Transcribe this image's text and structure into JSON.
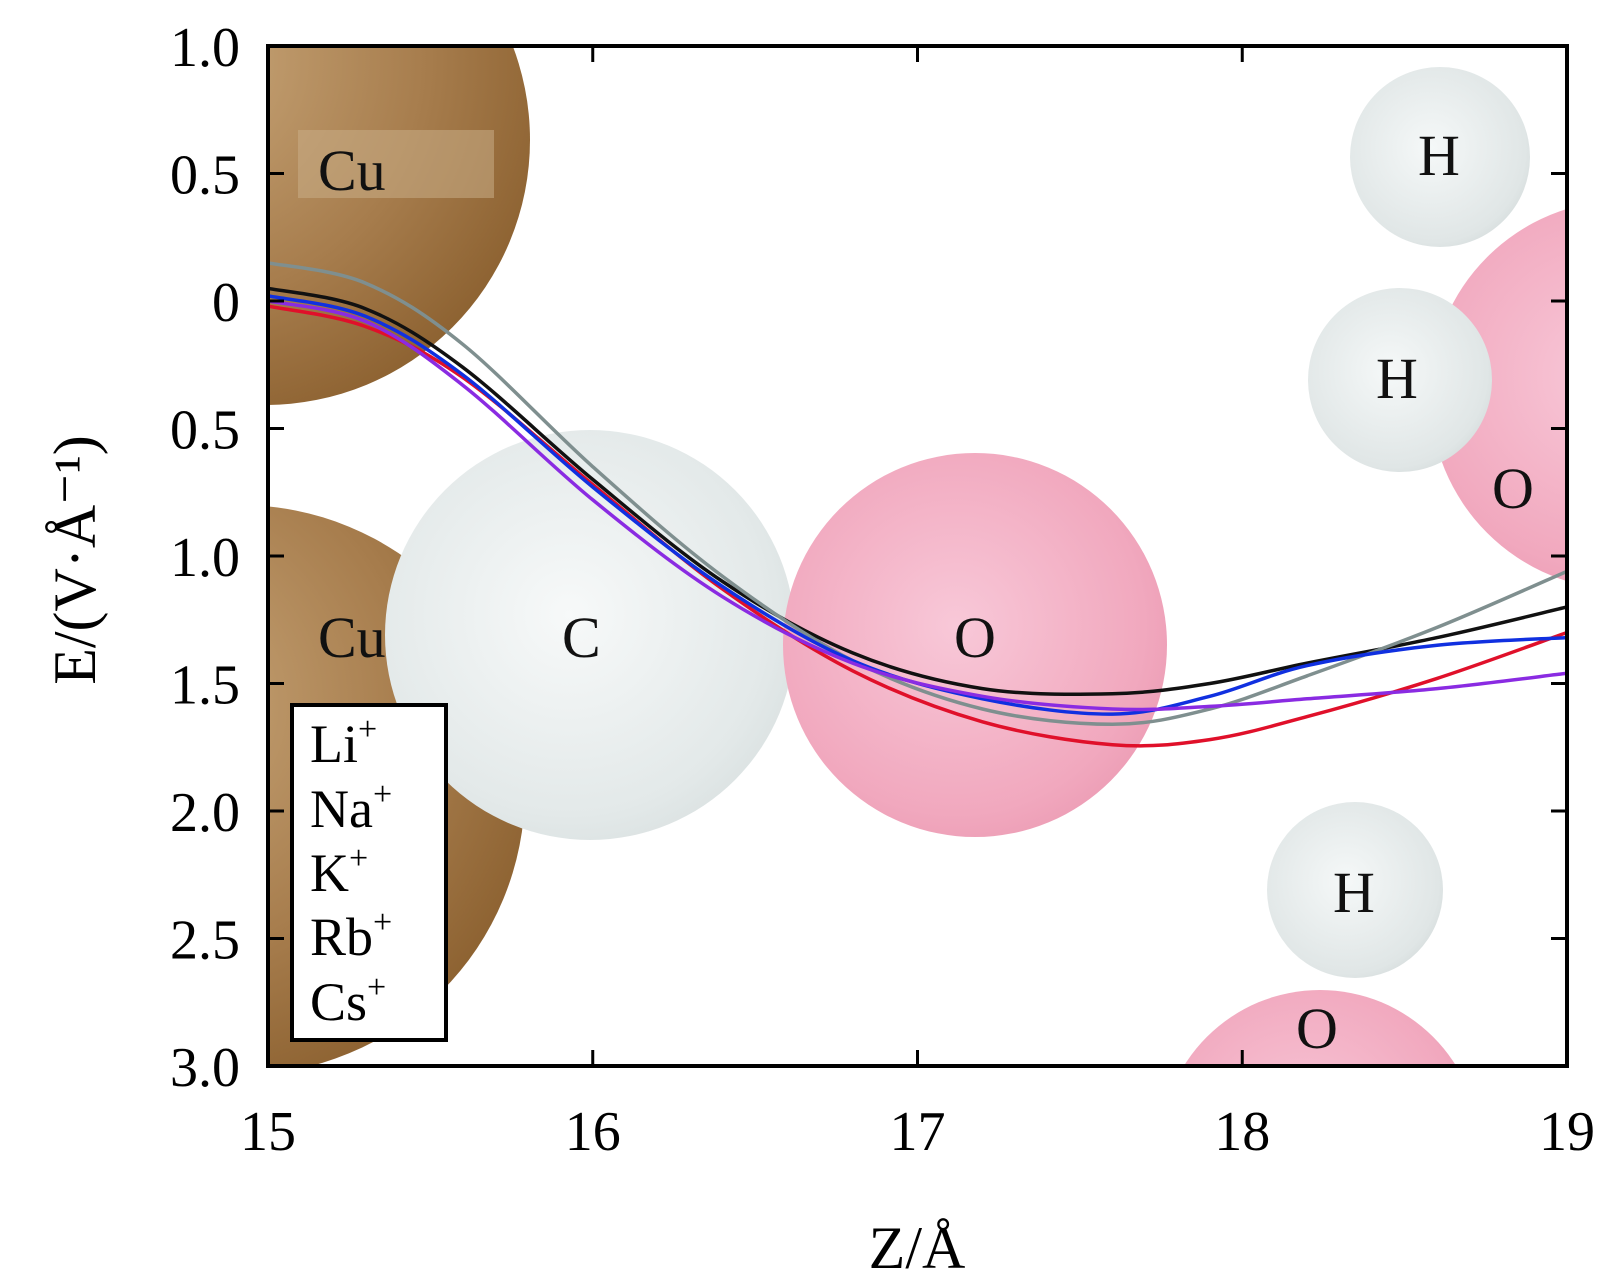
{
  "chart_data": {
    "type": "line",
    "title": "",
    "xlabel": "Z/Å",
    "ylabel": "E/(V·Å⁻¹)",
    "xlim": [
      15,
      19
    ],
    "ylim": [
      -1.0,
      3.0
    ],
    "y_axis_inverted": true,
    "x_ticks": [
      15,
      16,
      17,
      18,
      19
    ],
    "x_tick_labels": [
      "15",
      "16",
      "17",
      "18",
      "19"
    ],
    "y_ticks": [
      -1.0,
      -0.5,
      0,
      0.5,
      1.0,
      1.5,
      2.0,
      2.5,
      3.0
    ],
    "y_tick_labels": [
      "1.0",
      "0.5",
      "0",
      "0.5",
      "1.0",
      "1.5",
      "2.0",
      "2.5",
      "3.0"
    ],
    "grid": false,
    "legend_position": "bottom-left",
    "series": [
      {
        "name": "Li+",
        "color": "#e0102a",
        "x": [
          15,
          15.3,
          15.6,
          16.0,
          16.4,
          16.8,
          17.2,
          17.6,
          17.9,
          18.2,
          18.6,
          19.0
        ],
        "y": [
          0.02,
          0.1,
          0.3,
          0.72,
          1.13,
          1.45,
          1.65,
          1.74,
          1.72,
          1.63,
          1.48,
          1.3
        ]
      },
      {
        "name": "Na+",
        "color": "#111111",
        "x": [
          15,
          15.3,
          15.6,
          16.0,
          16.4,
          16.8,
          17.2,
          17.6,
          17.9,
          18.2,
          18.6,
          19.0
        ],
        "y": [
          -0.05,
          0.03,
          0.26,
          0.7,
          1.1,
          1.38,
          1.52,
          1.54,
          1.5,
          1.42,
          1.32,
          1.2
        ]
      },
      {
        "name": "K+",
        "color": "#7f8f8f",
        "x": [
          15,
          15.3,
          15.6,
          16.0,
          16.4,
          16.8,
          17.2,
          17.6,
          17.9,
          18.2,
          18.6,
          19.0
        ],
        "y": [
          -0.15,
          -0.07,
          0.17,
          0.65,
          1.08,
          1.41,
          1.6,
          1.66,
          1.6,
          1.47,
          1.28,
          1.06
        ]
      },
      {
        "name": "Rb+",
        "color": "#1030e0",
        "x": [
          15,
          15.3,
          15.6,
          16.0,
          16.4,
          16.8,
          17.2,
          17.6,
          17.9,
          18.2,
          18.6,
          19.0
        ],
        "y": [
          -0.02,
          0.06,
          0.29,
          0.73,
          1.12,
          1.41,
          1.56,
          1.62,
          1.55,
          1.43,
          1.35,
          1.32
        ]
      },
      {
        "name": "Cs+",
        "color": "#8a2be2",
        "x": [
          15,
          15.3,
          15.6,
          16.0,
          16.4,
          16.8,
          17.2,
          17.6,
          17.9,
          18.2,
          18.6,
          19.0
        ],
        "y": [
          0.0,
          0.08,
          0.33,
          0.78,
          1.16,
          1.42,
          1.55,
          1.6,
          1.59,
          1.56,
          1.52,
          1.46
        ]
      }
    ],
    "annotations": [
      "Cu",
      "Cu",
      "C",
      "O",
      "H",
      "H",
      "O",
      "H",
      "O"
    ]
  },
  "colors": {
    "cu": "#a27a4a",
    "carbon": "#dfe6e6",
    "oxygen": "#f2a9c0",
    "hydrogen": "#e2e8e8"
  }
}
